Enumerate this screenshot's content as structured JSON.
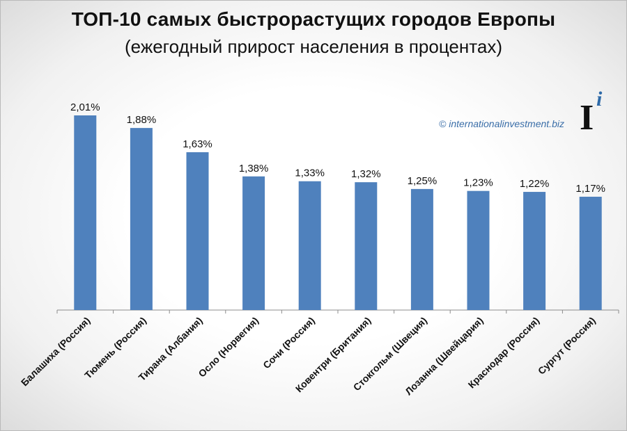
{
  "chart_data": {
    "type": "bar",
    "title": "ТОП-10 самых быстрорастущих городов Европы",
    "subtitle": "(ежегодный прирост населения в процентах)",
    "categories": [
      "Балашиха (Россия)",
      "Тюмень (Россия)",
      "Тирана (Албания)",
      "Осло (Норвегия)",
      "Сочи (Россия)",
      "Ковентри (Британия)",
      "Стокгольм (Швеция)",
      "Лозанна (Швейцария)",
      "Краснодар (Россия)",
      "Сургут (Россия)"
    ],
    "values": [
      2.01,
      1.88,
      1.63,
      1.38,
      1.33,
      1.32,
      1.25,
      1.23,
      1.22,
      1.17
    ],
    "value_labels": [
      "2,01%",
      "1,88%",
      "1,63%",
      "1,38%",
      "1,33%",
      "1,32%",
      "1,25%",
      "1,23%",
      "1,22%",
      "1,17%"
    ],
    "xlabel": "",
    "ylabel": "",
    "ylim": [
      0,
      2.01
    ],
    "grid": false,
    "bar_color": "#4f81bd"
  },
  "watermark": "© internationalinvestment.biz",
  "logo": {
    "letter": "I",
    "superscript": "i"
  }
}
